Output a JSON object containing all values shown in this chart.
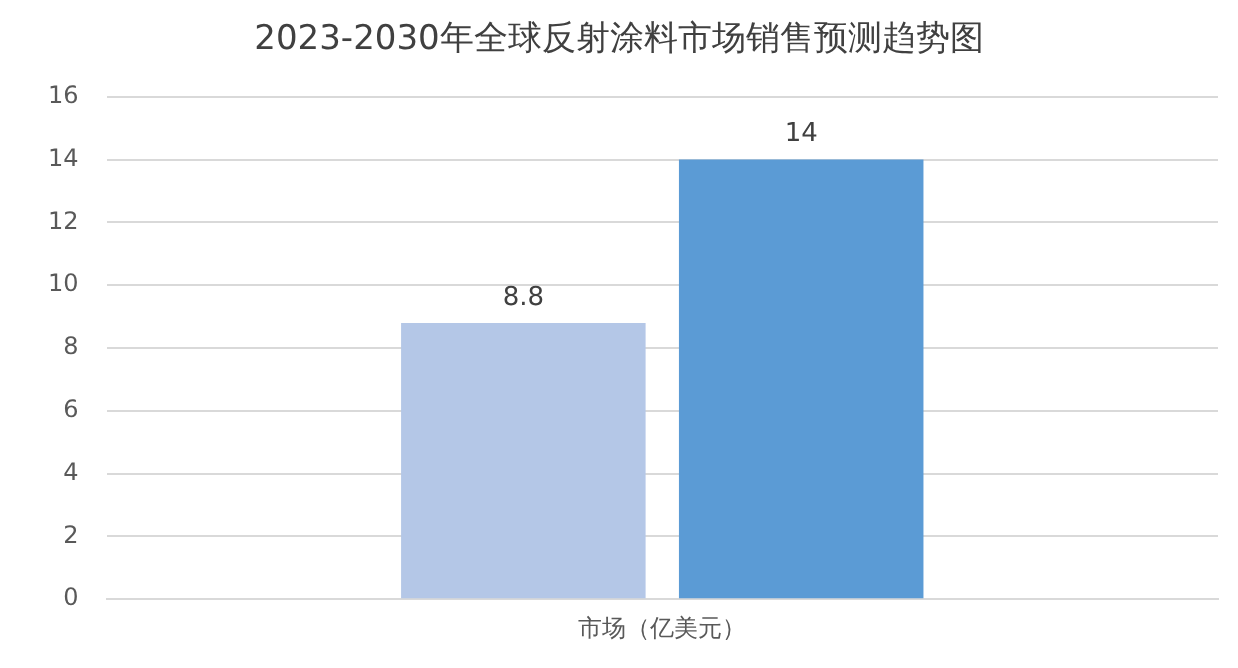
{
  "chart_data": {
    "type": "bar",
    "title": "2023-2030年全球反射涂料市场销售预测趋势图",
    "categories": [
      "市场（亿美元）"
    ],
    "series": [
      {
        "color": "#b4c7e7",
        "values": [
          8.8
        ]
      },
      {
        "color": "#5b9bd5",
        "values": [
          14
        ]
      }
    ],
    "ylim": [
      0,
      16
    ],
    "yticks": [
      0,
      2,
      4,
      6,
      8,
      10,
      12,
      14,
      16
    ],
    "grid": "y",
    "data_labels": true
  }
}
